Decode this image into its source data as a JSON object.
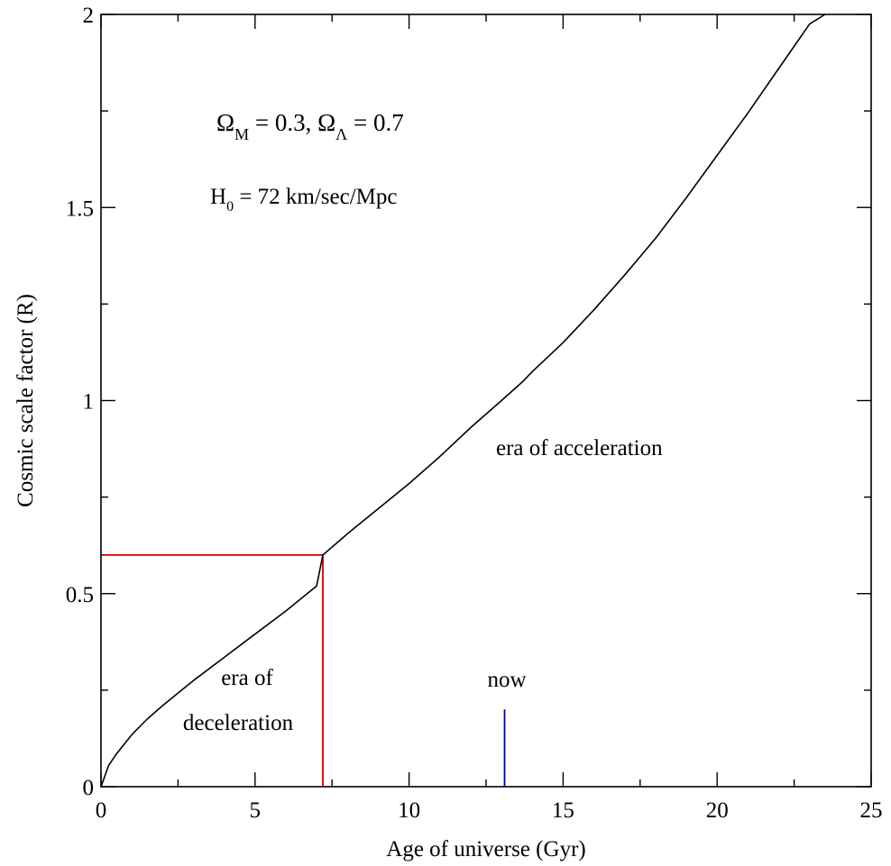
{
  "chart_data": {
    "type": "line",
    "title": "",
    "xlabel": "Age of universe (Gyr)",
    "ylabel": "Cosmic scale factor (R)",
    "xlim": [
      0,
      25
    ],
    "ylim": [
      0,
      2
    ],
    "grid": false,
    "x_ticks": [
      0,
      5,
      10,
      15,
      20,
      25
    ],
    "x_tick_labels": [
      "0",
      "5",
      "10",
      "15",
      "20",
      "25"
    ],
    "y_ticks": [
      0,
      0.5,
      1,
      1.5,
      2
    ],
    "y_tick_labels": [
      "0",
      "0.5",
      "1",
      "1.5",
      "2"
    ],
    "x_minor_ticks": [
      2.5,
      7.5,
      12.5,
      17.5,
      22.5
    ],
    "y_minor_ticks": [
      0.25,
      0.75,
      1.25,
      1.75
    ],
    "series": [
      {
        "color": "#000000",
        "x": [
          0,
          0.25,
          0.5,
          1,
          1.5,
          2,
          3,
          4,
          5,
          6,
          7,
          7.2,
          8,
          9,
          10,
          11,
          12,
          13,
          13.7,
          14,
          15,
          16,
          17,
          18,
          19,
          20,
          21,
          22,
          23,
          23.5
        ],
        "y": [
          0,
          0.055,
          0.085,
          0.135,
          0.175,
          0.21,
          0.275,
          0.335,
          0.395,
          0.455,
          0.52,
          0.6,
          0.655,
          0.72,
          0.785,
          0.855,
          0.93,
          1.0,
          1.05,
          1.075,
          1.15,
          1.235,
          1.325,
          1.42,
          1.525,
          1.635,
          1.745,
          1.86,
          1.975,
          2.0
        ]
      }
    ],
    "reference_lines": [
      {
        "color": "#cc0000",
        "x": [
          0,
          7.2,
          7.2
        ],
        "y": [
          0.6,
          0.6,
          0
        ]
      },
      {
        "color": "#000099",
        "x": [
          13.1,
          13.1
        ],
        "y": [
          0,
          0.2
        ]
      }
    ],
    "annotations": {
      "params": {
        "omega": "Ω",
        "m_sub": "M",
        "m_val": " = 0.3, ",
        "lambda_sub": "Λ",
        "lambda_val": " = 0.7"
      },
      "hubble": {
        "h": "H",
        "h_sub": "0",
        "h_val": " = 72 km/sec/Mpc"
      },
      "era_acceleration": "era of acceleration",
      "era_deceleration_line1": "era of",
      "era_deceleration_line2": "deceleration",
      "now": "now"
    }
  }
}
